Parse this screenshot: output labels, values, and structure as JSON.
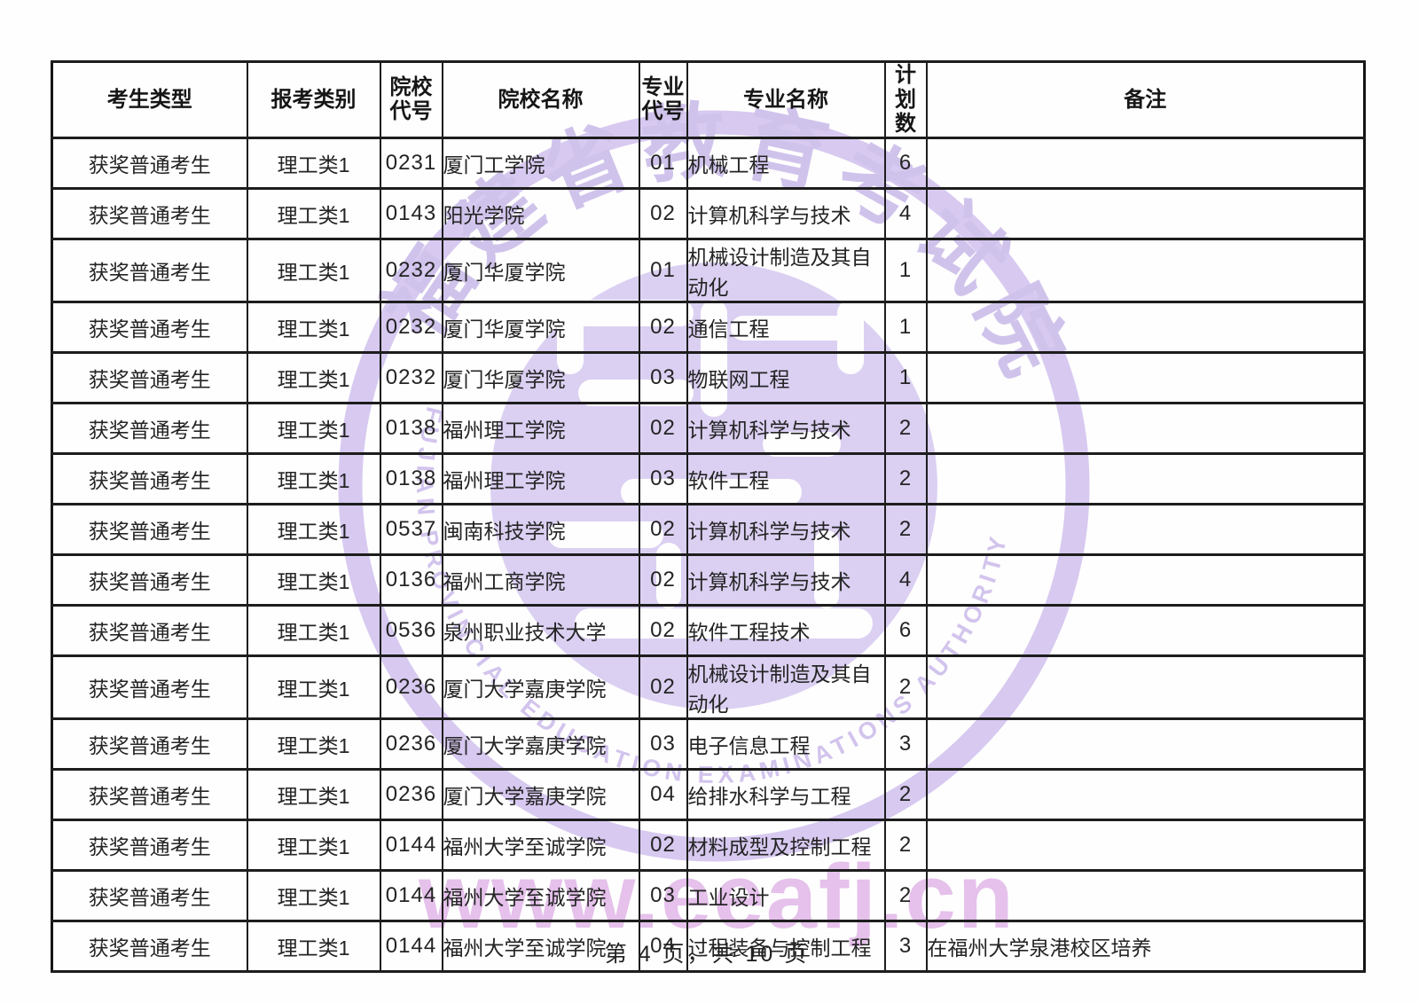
{
  "page": {
    "footer": "第 4 页，共 10 页"
  },
  "table": {
    "headers": [
      "考生类型",
      "报考类别",
      "院校代号",
      "院校名称",
      "专业代号",
      "专业名称",
      "计划数",
      "备注"
    ],
    "rows": [
      [
        "获奖普通考生",
        "理工类1",
        "0231",
        "厦门工学院",
        "01",
        "机械工程",
        "6",
        ""
      ],
      [
        "获奖普通考生",
        "理工类1",
        "0143",
        "阳光学院",
        "02",
        "计算机科学与技术",
        "4",
        ""
      ],
      [
        "获奖普通考生",
        "理工类1",
        "0232",
        "厦门华厦学院",
        "01",
        "机械设计制造及其自动化",
        "1",
        ""
      ],
      [
        "获奖普通考生",
        "理工类1",
        "0232",
        "厦门华厦学院",
        "02",
        "通信工程",
        "1",
        ""
      ],
      [
        "获奖普通考生",
        "理工类1",
        "0232",
        "厦门华厦学院",
        "03",
        "物联网工程",
        "1",
        ""
      ],
      [
        "获奖普通考生",
        "理工类1",
        "0138",
        "福州理工学院",
        "02",
        "计算机科学与技术",
        "2",
        ""
      ],
      [
        "获奖普通考生",
        "理工类1",
        "0138",
        "福州理工学院",
        "03",
        "软件工程",
        "2",
        ""
      ],
      [
        "获奖普通考生",
        "理工类1",
        "0537",
        "闽南科技学院",
        "02",
        "计算机科学与技术",
        "2",
        ""
      ],
      [
        "获奖普通考生",
        "理工类1",
        "0136",
        "福州工商学院",
        "02",
        "计算机科学与技术",
        "4",
        ""
      ],
      [
        "获奖普通考生",
        "理工类1",
        "0536",
        "泉州职业技术大学",
        "02",
        "软件工程技术",
        "6",
        ""
      ],
      [
        "获奖普通考生",
        "理工类1",
        "0236",
        "厦门大学嘉庚学院",
        "02",
        "机械设计制造及其自动化",
        "2",
        ""
      ],
      [
        "获奖普通考生",
        "理工类1",
        "0236",
        "厦门大学嘉庚学院",
        "03",
        "电子信息工程",
        "3",
        ""
      ],
      [
        "获奖普通考生",
        "理工类1",
        "0236",
        "厦门大学嘉庚学院",
        "04",
        "给排水科学与工程",
        "2",
        ""
      ],
      [
        "获奖普通考生",
        "理工类1",
        "0144",
        "福州大学至诚学院",
        "02",
        "材料成型及控制工程",
        "2",
        ""
      ],
      [
        "获奖普通考生",
        "理工类1",
        "0144",
        "福州大学至诚学院",
        "03",
        "工业设计",
        "2",
        ""
      ],
      [
        "获奖普通考生",
        "理工类1",
        "0144",
        "福州大学至诚学院",
        "04",
        "过程装备与控制工程",
        "3",
        "在福州大学泉港校区培养"
      ]
    ]
  },
  "watermark": {
    "seal_chinese": "福建省教育考试院",
    "seal_english": "FUJIAN PROVINCIAL EDUCATION EXAMINATIONS AUTHORITY",
    "url": "www.eeafj.cn",
    "colors": {
      "seal": "#d2c3ee",
      "disc": "#d8ccf2",
      "text": "#ccbce9",
      "url": "#cb84d8"
    }
  }
}
